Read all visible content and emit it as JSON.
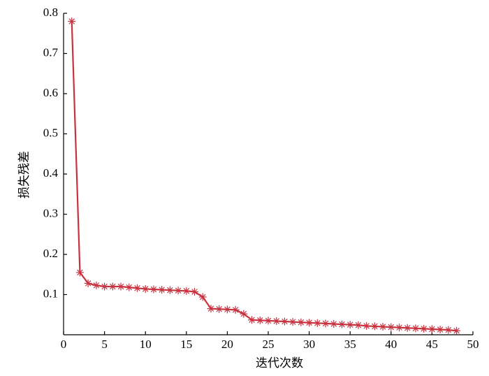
{
  "chart_data": {
    "type": "line",
    "x_label": "迭代次数",
    "y_label": "损失残差",
    "x": [
      1,
      2,
      3,
      4,
      5,
      6,
      7,
      8,
      9,
      10,
      11,
      12,
      13,
      14,
      15,
      16,
      17,
      18,
      19,
      20,
      21,
      22,
      23,
      24,
      25,
      26,
      27,
      28,
      29,
      30,
      31,
      32,
      33,
      34,
      35,
      36,
      37,
      38,
      39,
      40,
      41,
      42,
      43,
      44,
      45,
      46,
      47,
      48
    ],
    "series": [
      {
        "color": "#c8323f",
        "values": [
          0.78,
          0.155,
          0.128,
          0.123,
          0.12,
          0.12,
          0.12,
          0.118,
          0.116,
          0.114,
          0.113,
          0.112,
          0.111,
          0.11,
          0.109,
          0.107,
          0.094,
          0.065,
          0.064,
          0.063,
          0.062,
          0.052,
          0.037,
          0.036,
          0.035,
          0.034,
          0.033,
          0.032,
          0.031,
          0.03,
          0.029,
          0.028,
          0.027,
          0.026,
          0.025,
          0.024,
          0.022,
          0.021,
          0.02,
          0.019,
          0.018,
          0.017,
          0.016,
          0.015,
          0.014,
          0.013,
          0.012,
          0.01
        ]
      }
    ],
    "xlim": [
      0,
      50
    ],
    "xticks": [
      0,
      5,
      10,
      15,
      20,
      25,
      30,
      35,
      40,
      45,
      50
    ],
    "ylim": [
      0,
      0.8
    ],
    "yticks": [
      0.1,
      0.2,
      0.3,
      0.4,
      0.5,
      0.6,
      0.7,
      0.8
    ]
  }
}
